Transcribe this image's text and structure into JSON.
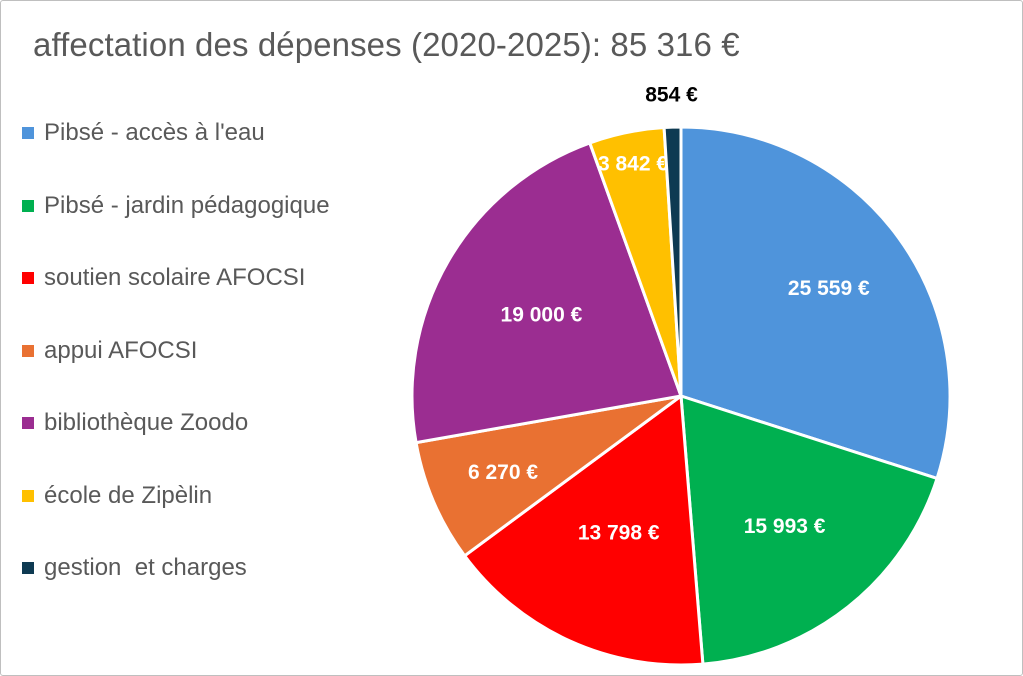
{
  "chart_data": {
    "type": "pie",
    "title": "affectation des dépenses (2020-2025): 85 316 €",
    "legend_position": "left",
    "slices": [
      {
        "name": "Pibsé - accès à l'eau",
        "value": 25559,
        "label": "25 559 €",
        "color": "#4f94db",
        "label_color": "#ffffff"
      },
      {
        "name": "Pibsé - jardin pédagogique",
        "value": 15993,
        "label": "15 993 €",
        "color": "#00b050",
        "label_color": "#ffffff"
      },
      {
        "name": "soutien scolaire AFOCSI",
        "value": 13798,
        "label": "13 798 €",
        "color": "#ff0000",
        "label_color": "#ffffff"
      },
      {
        "name": "appui AFOCSI",
        "value": 6270,
        "label": "6 270 €",
        "color": "#e97132",
        "label_color": "#ffffff"
      },
      {
        "name": "bibliothèque Zoodo",
        "value": 19000,
        "label": "19 000 €",
        "color": "#9b2d91",
        "label_color": "#ffffff"
      },
      {
        "name": "école de Zipèlin",
        "value": 3842,
        "label": "3 842 €",
        "color": "#ffc000",
        "label_color": "#ffffff"
      },
      {
        "name": "gestion  et charges",
        "value": 854,
        "label": "854 €",
        "color": "#0e3a52",
        "label_color": "#000000"
      }
    ]
  }
}
